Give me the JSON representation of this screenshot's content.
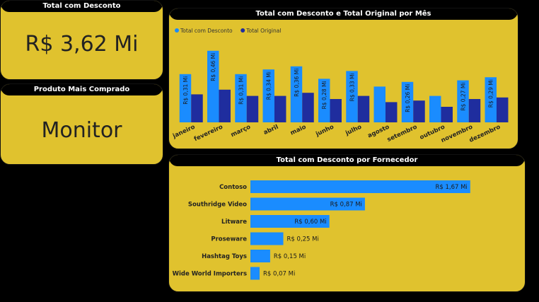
{
  "kpi_total": {
    "title": "Total com Desconto",
    "value": "R$ 3,62 Mi"
  },
  "kpi_produto": {
    "title": "Produto Mais Comprado",
    "value": "Monitor"
  },
  "colors": {
    "background": "#000000",
    "panel": "#e0c22e",
    "series_discount": "#1a8cff",
    "series_original": "#1f2d9e"
  },
  "chart_data": [
    {
      "type": "bar",
      "title": "Total com Desconto e Total Original por Mês",
      "legend_position": "top-left",
      "categories": [
        "janeiro",
        "fevereiro",
        "março",
        "abril",
        "maio",
        "junho",
        "julho",
        "agosto",
        "setembro",
        "outubro",
        "novembro",
        "dezembro"
      ],
      "series": [
        {
          "name": "Total com Desconto",
          "values": [
            0.31,
            0.46,
            0.31,
            0.34,
            0.36,
            0.28,
            0.33,
            0.23,
            0.26,
            0.17,
            0.27,
            0.29
          ],
          "labels": [
            "R$ 0,31 Mi",
            "R$ 0,46 Mi",
            "R$ 0,31 Mi",
            "R$ 0,34 Mi",
            "R$ 0,36 Mi",
            "R$ 0,28 Mi",
            "R$ 0,33 Mi",
            "",
            "R$ 0,26 Mi",
            "",
            "R$ 0,27 Mi",
            "R$ 0,29 Mi"
          ]
        },
        {
          "name": "Total Original",
          "values": [
            0.18,
            0.21,
            0.17,
            0.17,
            0.19,
            0.15,
            0.17,
            0.13,
            0.14,
            0.1,
            0.15,
            0.16
          ]
        }
      ],
      "ylim": [
        0,
        0.5
      ]
    },
    {
      "type": "bar",
      "orientation": "horizontal",
      "title": "Total com Desconto por Fornecedor",
      "categories": [
        "Contoso",
        "Southridge Video",
        "Litware",
        "Proseware",
        "Hashtag Toys",
        "Wide World Importers"
      ],
      "values": [
        1.67,
        0.87,
        0.6,
        0.25,
        0.15,
        0.07
      ],
      "labels": [
        "R$ 1,67 Mi",
        "R$ 0,87 Mi",
        "R$ 0,60 Mi",
        "R$ 0,25 Mi",
        "R$ 0,15 Mi",
        "R$ 0,07 Mi"
      ],
      "xlim": [
        0,
        1.8
      ]
    }
  ]
}
